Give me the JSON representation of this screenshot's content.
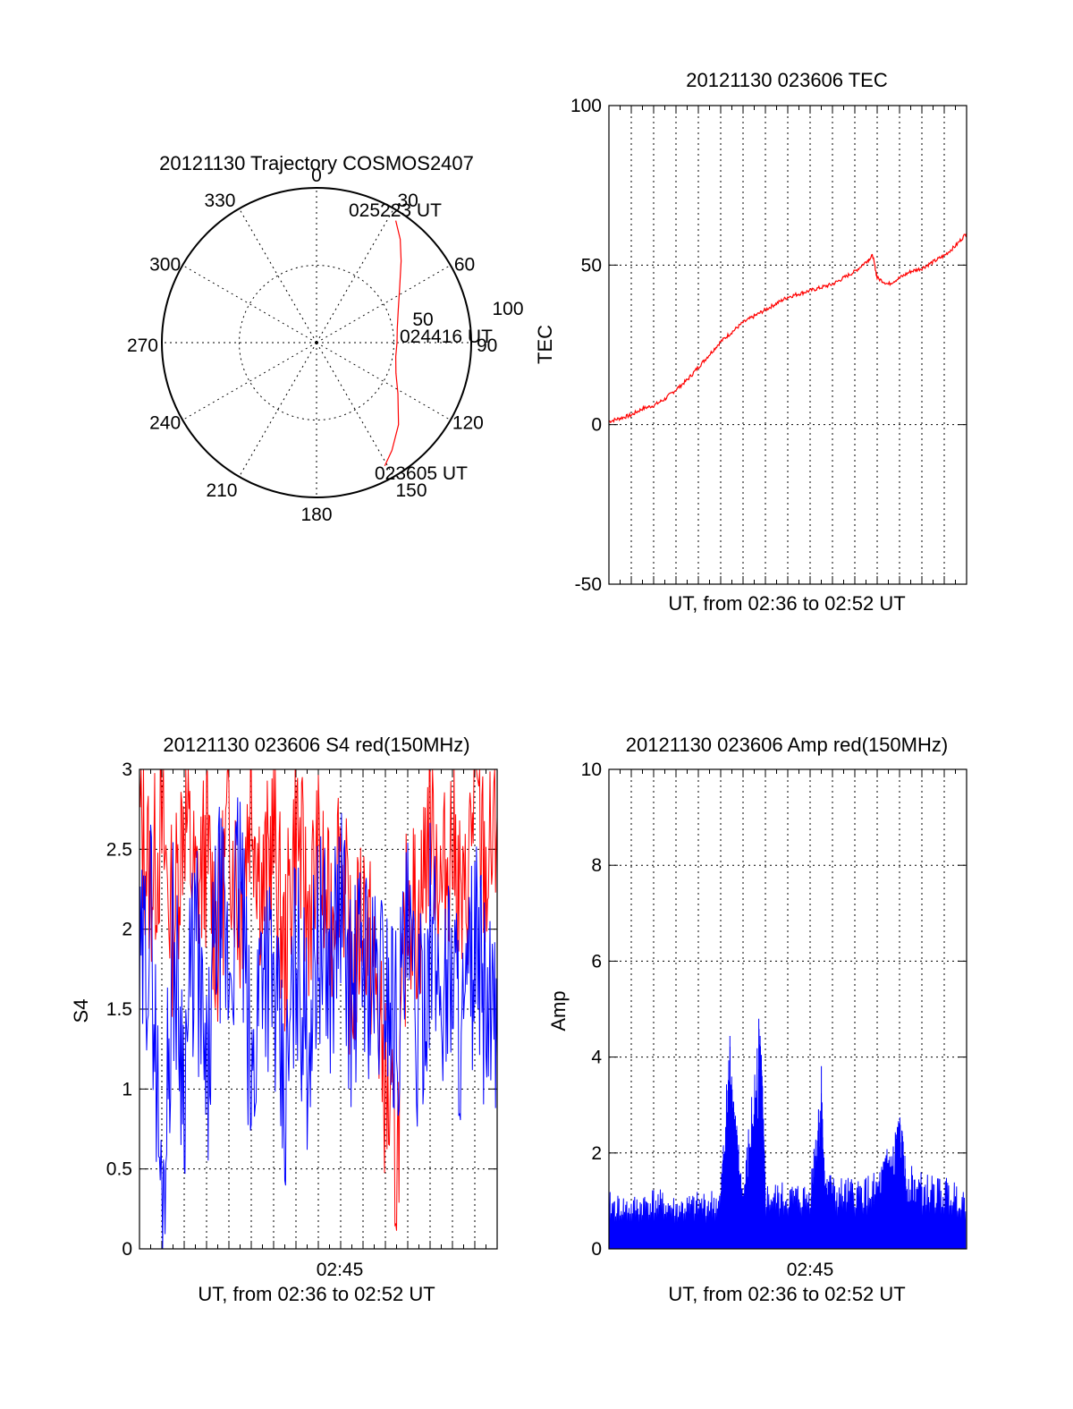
{
  "colors": {
    "red": "#ff0000",
    "blue": "#0000ff",
    "ink": "#000000",
    "background": "#ffffff"
  },
  "chart_data": [
    {
      "type": "polar",
      "title": "20121130 Trajectory COSMOS2407",
      "angle_ticks": [
        "0",
        "30",
        "60",
        "90",
        "120",
        "150",
        "180",
        "210",
        "240",
        "270",
        "300",
        "330"
      ],
      "radial_ticks": [
        "50",
        "100"
      ],
      "radial_range": [
        0,
        100
      ],
      "grid": true,
      "series": [
        {
          "color": "#ff0000",
          "azimuth_deg": [
            151,
            145,
            135,
            122,
            111,
            100,
            90,
            80,
            68,
            57,
            46,
            39,
            33
          ],
          "radius": [
            91,
            85,
            75,
            62,
            55,
            52,
            52,
            53,
            57,
            64,
            76,
            86,
            94
          ]
        }
      ],
      "annotations": [
        "025223 UT",
        "024416 UT",
        "023605 UT"
      ]
    },
    {
      "type": "line",
      "title": "20121130 023606 TEC",
      "xlabel": "UT, from 02:36 to 02:52 UT",
      "ylabel": "TEC",
      "ylim": [
        -50,
        100
      ],
      "yticks": [
        "100",
        "50",
        "0",
        "-50"
      ],
      "xlim_minutes": [
        0,
        16
      ],
      "grid": true,
      "series": [
        {
          "color": "#ff0000",
          "x": [
            0,
            0.5,
            1,
            1.5,
            2,
            2.5,
            3,
            3.5,
            4,
            4.5,
            5,
            5.5,
            6,
            6.5,
            7,
            7.5,
            8,
            8.5,
            9,
            9.5,
            10,
            10.5,
            11,
            11.5,
            11.8,
            12,
            12.5,
            13,
            13.5,
            14,
            14.5,
            15,
            15.5,
            16
          ],
          "y": [
            1,
            2,
            3,
            5,
            6,
            8,
            11,
            14,
            18,
            22,
            26,
            29,
            32,
            34,
            36,
            38,
            40,
            41,
            42,
            43,
            44,
            46,
            48,
            51,
            53,
            46,
            44,
            46,
            48,
            49,
            51,
            53,
            56,
            60
          ]
        }
      ]
    },
    {
      "type": "line",
      "title": "20121130 023606 S4 red(150MHz)",
      "xlabel": "UT, from 02:36 to 02:52 UT",
      "ylabel": "S4",
      "ylim": [
        0,
        3
      ],
      "yticks": [
        "3",
        "2.5",
        "2",
        "1.5",
        "1",
        "0.5",
        "0"
      ],
      "xticks": [
        {
          "at_minute": 9,
          "label": "02:45"
        }
      ],
      "xlim_minutes": [
        0,
        16
      ],
      "grid": true,
      "series": [
        {
          "color": "#ff0000",
          "x": [
            0,
            0.5,
            1,
            1.5,
            2,
            2.5,
            3,
            3.5,
            4,
            4.5,
            5,
            5.5,
            6,
            6.5,
            7,
            7.5,
            8,
            8.5,
            9,
            9.5,
            10,
            10.5,
            11,
            11.5,
            12,
            12.5,
            13,
            13.5,
            14,
            14.5,
            15,
            15.5,
            16
          ],
          "y": [
            2.7,
            2.3,
            2.6,
            2.0,
            2.8,
            2.2,
            2.5,
            1.9,
            2.7,
            2.1,
            2.9,
            2.2,
            2.6,
            1.8,
            2.7,
            2.1,
            2.4,
            2.0,
            2.6,
            1.6,
            2.2,
            1.7,
            1.0,
            0.5,
            2.3,
            2.0,
            2.8,
            2.2,
            2.6,
            2.0,
            2.9,
            2.3,
            2.7
          ]
        },
        {
          "color": "#0000ff",
          "x": [
            0,
            0.5,
            1,
            1.5,
            2,
            2.5,
            3,
            3.5,
            4,
            4.5,
            5,
            5.5,
            6,
            6.5,
            7,
            7.5,
            8,
            8.5,
            9,
            9.5,
            10,
            10.5,
            11,
            11.5,
            12,
            12.5,
            13,
            13.5,
            14,
            14.5,
            15,
            15.5,
            16
          ],
          "y": [
            1.6,
            2.1,
            0.2,
            1.9,
            1.1,
            2.0,
            0.9,
            2.2,
            1.7,
            2.4,
            0.9,
            2.0,
            1.6,
            0.8,
            1.9,
            1.3,
            2.0,
            1.7,
            2.2,
            1.5,
            1.9,
            1.6,
            1.7,
            1.4,
            1.9,
            1.3,
            2.0,
            1.6,
            1.8,
            1.3,
            1.9,
            1.5,
            1.2
          ]
        }
      ]
    },
    {
      "type": "line",
      "title": "20121130 023606 Amp red(150MHz)",
      "xlabel": "UT, from 02:36 to 02:52 UT",
      "ylabel": "Amp",
      "ylim": [
        0,
        10
      ],
      "yticks": [
        "10",
        "8",
        "6",
        "4",
        "2",
        "0"
      ],
      "xticks": [
        {
          "at_minute": 9,
          "label": "02:45"
        }
      ],
      "xlim_minutes": [
        0,
        16
      ],
      "grid": true,
      "series": [
        {
          "color": "#0000ff",
          "x": [
            0,
            1,
            2,
            3,
            4,
            5,
            5.4,
            5.6,
            6,
            6.7,
            6.8,
            7,
            8,
            9,
            9.5,
            9.6,
            10,
            11,
            12,
            12.8,
            13,
            13.3,
            14,
            15,
            16
          ],
          "y": [
            1.2,
            1.1,
            1.3,
            1.1,
            1.2,
            1.3,
            4.8,
            3.2,
            1.3,
            5.0,
            4.5,
            1.4,
            1.4,
            1.4,
            4.1,
            2.0,
            1.5,
            1.5,
            1.6,
            2.6,
            2.9,
            1.8,
            1.6,
            1.5,
            1.4
          ]
        }
      ]
    }
  ]
}
